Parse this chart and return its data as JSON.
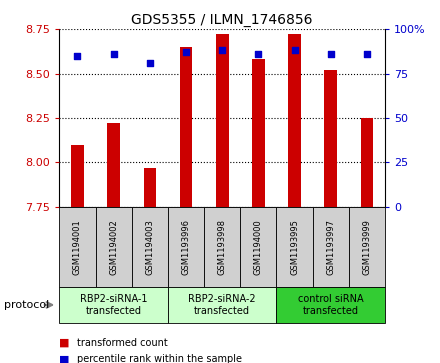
{
  "title": "GDS5355 / ILMN_1746856",
  "samples": [
    "GSM1194001",
    "GSM1194002",
    "GSM1194003",
    "GSM1193996",
    "GSM1193998",
    "GSM1194000",
    "GSM1193995",
    "GSM1193997",
    "GSM1193999"
  ],
  "bar_values": [
    8.1,
    8.22,
    7.97,
    8.65,
    8.72,
    8.58,
    8.72,
    8.52,
    8.25
  ],
  "percentile_values": [
    85,
    86,
    81,
    87,
    88,
    86,
    88,
    86,
    86
  ],
  "ylim_left": [
    7.75,
    8.75
  ],
  "ylim_right": [
    0,
    100
  ],
  "yticks_left": [
    7.75,
    8.0,
    8.25,
    8.5,
    8.75
  ],
  "yticks_right": [
    0,
    25,
    50,
    75,
    100
  ],
  "bar_color": "#cc0000",
  "dot_color": "#0000cc",
  "groups": [
    {
      "label": "RBP2-siRNA-1\ntransfected",
      "indices": [
        0,
        1,
        2
      ],
      "color": "#ccffcc"
    },
    {
      "label": "RBP2-siRNA-2\ntransfected",
      "indices": [
        3,
        4,
        5
      ],
      "color": "#ccffcc"
    },
    {
      "label": "control siRNA\ntransfected",
      "indices": [
        6,
        7,
        8
      ],
      "color": "#33cc33"
    }
  ],
  "protocol_label": "protocol",
  "legend_bar_label": "transformed count",
  "legend_dot_label": "percentile rank within the sample",
  "tick_color_left": "#cc0000",
  "tick_color_right": "#0000cc",
  "sample_box_color": "#d0d0d0",
  "bar_width": 0.35
}
